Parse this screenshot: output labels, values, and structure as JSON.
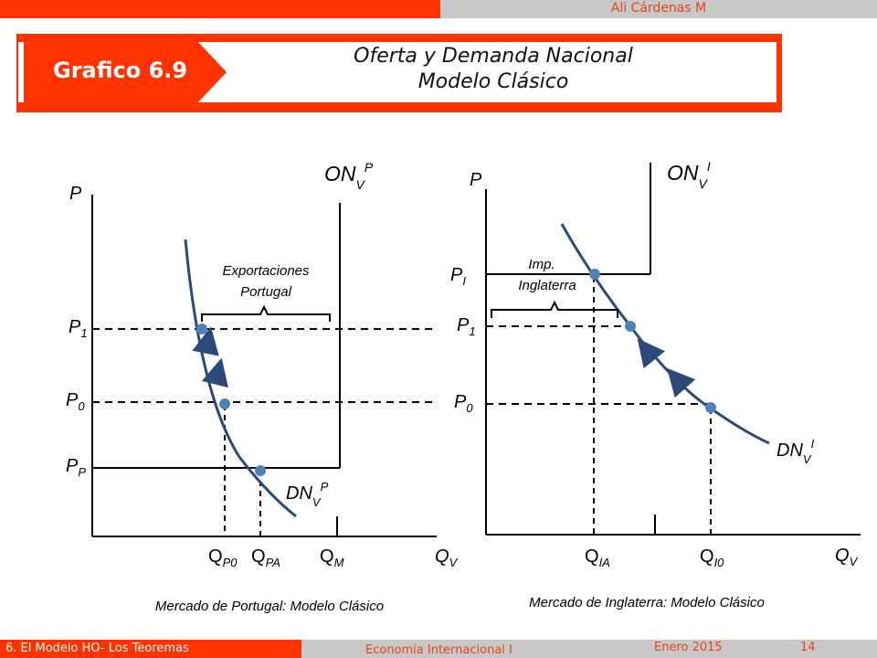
{
  "header": {
    "author": "Ali Cárdenas M",
    "tag": "Grafico 6.9",
    "title_line1": "Oferta y Demanda Nacional",
    "title_line2": "Modelo Clásico"
  },
  "left_panel": {
    "y_axis": "P",
    "x_axis": "Q",
    "x_axis_sub": "V",
    "supply_label": "ON",
    "supply_sub": "V",
    "supply_sup": "P",
    "demand_label": "DN",
    "demand_sub": "V",
    "demand_sup": "P",
    "price_levels": [
      {
        "main": "P",
        "sub": "1"
      },
      {
        "main": "P",
        "sub": "0"
      },
      {
        "main": "P",
        "sub": "P"
      }
    ],
    "quantities": [
      {
        "main": "Q",
        "sub": "P0"
      },
      {
        "main": "Q",
        "sub": "PA"
      },
      {
        "main": "Q",
        "sub": "M"
      }
    ],
    "brace_line1": "Exportaciones",
    "brace_line2": "Portugal",
    "caption": "Mercado de Portugal: Modelo Clásico"
  },
  "right_panel": {
    "y_axis": "P",
    "x_axis": "Q",
    "x_axis_sub": "V",
    "supply_label": "ON",
    "supply_sub": "V",
    "supply_sup": "I",
    "demand_label": "DN",
    "demand_sub": "V",
    "demand_sup": "I",
    "price_levels": [
      {
        "main": "P",
        "sub": "I"
      },
      {
        "main": "P",
        "sub": "1"
      },
      {
        "main": "P",
        "sub": "0"
      }
    ],
    "quantities": [
      {
        "main": "Q",
        "sub": "IA"
      },
      {
        "main": "Q",
        "sub": "I0"
      }
    ],
    "brace_line1": "Imp.",
    "brace_line2": "Inglaterra",
    "caption": "Mercado de Inglaterra: Modelo Clásico"
  },
  "footer": {
    "left": "6. El Modelo HO- Los Teoremas",
    "middle": "Economía Internacional I",
    "date": "Enero 2015",
    "page": "14"
  },
  "colors": {
    "brand": "#ff3300",
    "curve": "#2b4a7a",
    "point": "#4f81bd"
  }
}
